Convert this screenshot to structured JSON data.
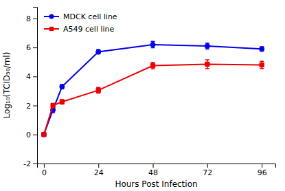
{
  "chart_data": {
    "type": "line",
    "xlabel": "Hours Post Infection",
    "ylabel": "Log₁₀(TCID₅₀/ml)",
    "x": [
      0,
      4,
      8,
      24,
      48,
      72,
      96
    ],
    "series": [
      {
        "name": "MDCK cell line",
        "color": "#0000ee",
        "marker": "circle",
        "values": [
          0.0,
          1.7,
          3.3,
          5.7,
          6.2,
          6.1,
          5.9
        ],
        "errors": [
          0.05,
          0.2,
          0.15,
          0.15,
          0.22,
          0.2,
          0.15
        ]
      },
      {
        "name": "A549 cell line",
        "color": "#ee0000",
        "marker": "square",
        "values": [
          0.0,
          2.0,
          2.25,
          3.05,
          4.75,
          4.85,
          4.8
        ],
        "errors": [
          0.05,
          0.15,
          0.15,
          0.2,
          0.22,
          0.3,
          0.25
        ]
      }
    ],
    "xlim": [
      -3,
      102
    ],
    "xticks": [
      0,
      24,
      48,
      72,
      96
    ],
    "ylim": [
      -2,
      8.8
    ],
    "yticks": [
      -2,
      0,
      2,
      4,
      6,
      8
    ],
    "legend": "top-left",
    "grid": false
  }
}
